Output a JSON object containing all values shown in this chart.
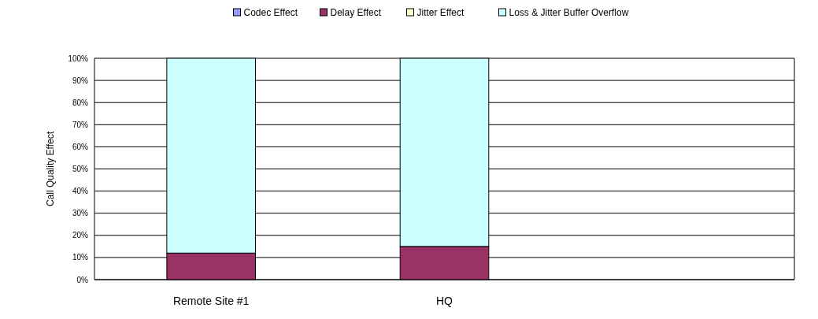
{
  "chart_data": {
    "type": "bar",
    "stacked": true,
    "ylabel": "Call Quality Effect",
    "categories": [
      "Remote Site #1",
      "HQ",
      null
    ],
    "series": [
      {
        "name": "Codec Effect",
        "color": "#9999ff",
        "values": [
          0,
          0,
          null
        ]
      },
      {
        "name": "Delay Effect",
        "color": "#993366",
        "values": [
          12,
          15,
          null
        ]
      },
      {
        "name": "Jitter Effect",
        "color": "#ffffcc",
        "values": [
          0,
          0,
          null
        ]
      },
      {
        "name": "Loss & Jitter Buffer Overflow",
        "color": "#ccffff",
        "values": [
          88,
          85,
          null
        ]
      }
    ],
    "ylim": [
      0,
      100
    ],
    "yticks": [
      {
        "value": 0,
        "label": "0%"
      },
      {
        "value": 10,
        "label": "10%"
      },
      {
        "value": 20,
        "label": "20%"
      },
      {
        "value": 30,
        "label": "30%"
      },
      {
        "value": 40,
        "label": "40%"
      },
      {
        "value": 50,
        "label": "50%"
      },
      {
        "value": 60,
        "label": "60%"
      },
      {
        "value": 70,
        "label": "70%"
      },
      {
        "value": 80,
        "label": "80%"
      },
      {
        "value": 90,
        "label": "90%"
      },
      {
        "value": 100,
        "label": "100%"
      }
    ],
    "grid": "y",
    "legend": "top"
  }
}
